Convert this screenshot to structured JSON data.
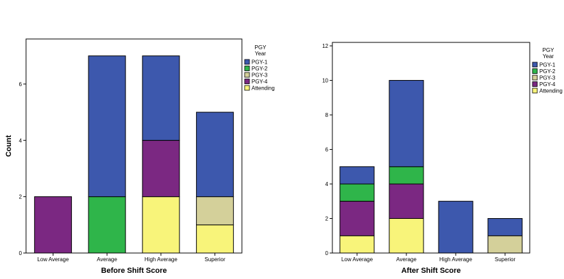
{
  "series_colors": {
    "PGY-1": "#3d58ad",
    "PGY-2": "#2fb54a",
    "PGY-3": "#d4d09a",
    "PGY-4": "#7b2882",
    "Attending": "#f8f47a"
  },
  "chart_data": [
    {
      "type": "bar",
      "stacked": true,
      "categories": [
        "Low Average",
        "Average",
        "High Average",
        "Superior"
      ],
      "xlabel": "Before Shift Score",
      "ylabel": "Count",
      "ylim": [
        0,
        7.6
      ],
      "yticks": [
        "0",
        "2",
        "4",
        "6"
      ],
      "legend_title": [
        "PGY",
        "Year"
      ],
      "legend_position": "right",
      "series": [
        {
          "name": "Attending",
          "values": [
            0,
            0,
            2,
            1
          ]
        },
        {
          "name": "PGY-2",
          "values": [
            0,
            2,
            0,
            0
          ]
        },
        {
          "name": "PGY-4",
          "values": [
            2,
            0,
            2,
            0
          ]
        },
        {
          "name": "PGY-3",
          "values": [
            0,
            0,
            0,
            1
          ]
        },
        {
          "name": "PGY-1",
          "values": [
            0,
            5,
            3,
            3
          ]
        }
      ],
      "legend_order": [
        "PGY-1",
        "PGY-2",
        "PGY-3",
        "PGY-4",
        "Attending"
      ]
    },
    {
      "type": "bar",
      "stacked": true,
      "categories": [
        "Low Average",
        "Average",
        "High Average",
        "Superior"
      ],
      "xlabel": "After Shift Score",
      "ylabel": "",
      "ylim": [
        0,
        12.2
      ],
      "yticks": [
        "0",
        "2",
        "4",
        "6",
        "8",
        "10",
        "12"
      ],
      "legend_title": [
        "PGY",
        "Year"
      ],
      "legend_position": "right",
      "series": [
        {
          "name": "Attending",
          "values": [
            1,
            2,
            0,
            0
          ]
        },
        {
          "name": "PGY-3",
          "values": [
            0,
            0,
            0,
            1
          ]
        },
        {
          "name": "PGY-4",
          "values": [
            2,
            2,
            0,
            0
          ]
        },
        {
          "name": "PGY-2",
          "values": [
            1,
            1,
            0,
            0
          ]
        },
        {
          "name": "PGY-1",
          "values": [
            1,
            5,
            3,
            1
          ]
        }
      ],
      "legend_order": [
        "PGY-1",
        "PGY-2",
        "PGY-3",
        "PGY-4",
        "Attending"
      ]
    }
  ]
}
